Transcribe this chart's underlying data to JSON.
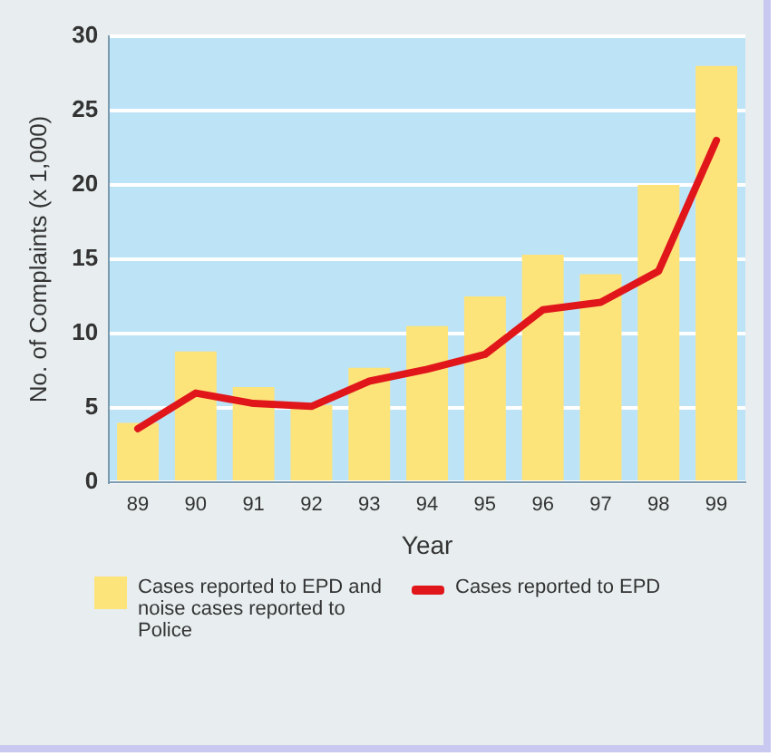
{
  "chart_data": {
    "type": "bar",
    "xlabel": "Year",
    "ylabel": "No. of Complaints (x 1,000)",
    "categories": [
      "89",
      "90",
      "91",
      "92",
      "93",
      "94",
      "95",
      "96",
      "97",
      "98",
      "99"
    ],
    "series": [
      {
        "name": "Cases reported to EPD and noise cases reported to Police",
        "color": "#fde47a",
        "values": [
          4,
          8.8,
          6.4,
          5.2,
          7.7,
          10.5,
          12.5,
          15.3,
          14,
          20,
          28
        ]
      },
      {
        "name": "Cases reported to EPD",
        "type": "line",
        "color": "#e0161b",
        "values": [
          3.6,
          6,
          5.3,
          5.1,
          6.8,
          7.6,
          8.6,
          11.6,
          12.1,
          14.2,
          23
        ]
      }
    ],
    "ylim": [
      0,
      30
    ],
    "yticks": [
      0,
      5,
      10,
      15,
      20,
      25,
      30
    ],
    "grid": "y",
    "legend": "bottom",
    "marker": "none",
    "line_style": "solid"
  }
}
